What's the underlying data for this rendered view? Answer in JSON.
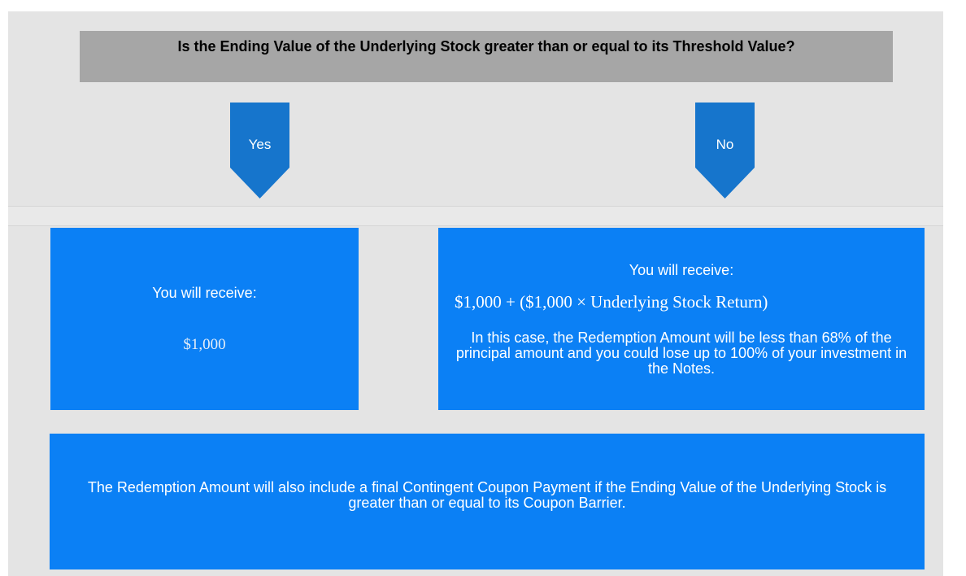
{
  "question": "Is the Ending Value of the Underlying Stock greater than or equal to its Threshold Value?",
  "branches": [
    {
      "label": "Yes",
      "heading": "You will receive:",
      "amount": "$1,000"
    },
    {
      "label": "No",
      "heading": "You will receive:",
      "formula": "$1,000 + ($1,000 × Underlying Stock Return)",
      "note": "In this case, the Redemption Amount will be less than 68% of the principal amount and you could lose up to 100% of your investment in the Notes."
    }
  ],
  "footer": "The Redemption Amount will also include a final Contingent Coupon Payment if the Ending Value of the Underlying Stock is greater than or equal to its Coupon Barrier."
}
